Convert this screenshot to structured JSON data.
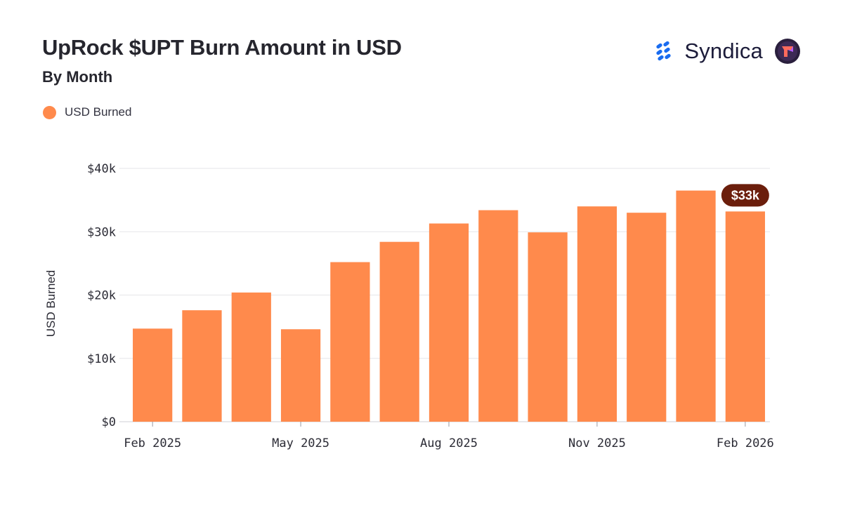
{
  "header": {
    "title": "UpRock $UPT Burn Amount in USD",
    "subtitle": "By Month"
  },
  "brand": {
    "name": "Syndica",
    "icon": "syndica-logo-icon",
    "partner_icon": "uprock-logo-icon"
  },
  "legend": {
    "label": "USD Burned",
    "color": "#FF8A4C"
  },
  "colors": {
    "bar": "#FF8A4C",
    "badge_bg": "#6B1E0C",
    "badge_text": "#ffffff",
    "grid": "#e6e6e9"
  },
  "chart_data": {
    "type": "bar",
    "ylabel": "USD Burned",
    "ylim": [
      0,
      40000
    ],
    "yticks": [
      0,
      10000,
      20000,
      30000,
      40000
    ],
    "ytick_labels": [
      "$0",
      "$10k",
      "$20k",
      "$30k",
      "$40k"
    ],
    "categories": [
      "2025-02",
      "2025-03",
      "2025-04",
      "2025-05",
      "2025-06",
      "2025-07",
      "2025-08",
      "2025-09",
      "2025-10",
      "2025-11",
      "2025-12",
      "2026-01",
      "2026-02"
    ],
    "xtick_labels": [
      {
        "index": 0,
        "label": "Feb 2025"
      },
      {
        "index": 3,
        "label": "May 2025"
      },
      {
        "index": 6,
        "label": "Aug 2025"
      },
      {
        "index": 9,
        "label": "Nov 2025"
      },
      {
        "index": 12,
        "label": "Feb 2026"
      }
    ],
    "series": [
      {
        "name": "USD Burned",
        "values": [
          14700,
          17600,
          20400,
          14600,
          25200,
          28400,
          31300,
          33400,
          29900,
          34000,
          33000,
          36500,
          33200
        ]
      }
    ],
    "annotations": [
      {
        "index": 12,
        "text": "$33k"
      }
    ],
    "grid": true,
    "legend_position": "top-left"
  }
}
